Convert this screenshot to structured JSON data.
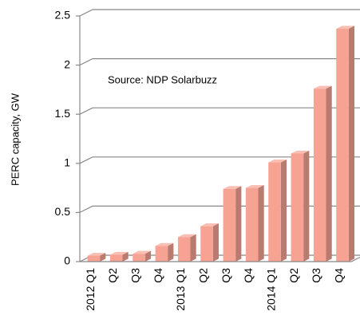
{
  "chart_data": {
    "type": "bar",
    "ylabel": "PERC capacity, GW",
    "annotation": "Source: NDP Solarbuzz",
    "categories": [
      "2012 Q1",
      "Q2",
      "Q3",
      "Q4",
      "2013 Q1",
      "Q2",
      "Q3",
      "Q4",
      "2014 Q1",
      "Q2",
      "Q3",
      "Q4"
    ],
    "values": [
      0.06,
      0.07,
      0.08,
      0.16,
      0.25,
      0.36,
      0.74,
      0.75,
      1.01,
      1.1,
      1.76,
      2.37
    ],
    "color": "#f7a394",
    "ylim": [
      0,
      2.5
    ],
    "yticks": [
      0,
      0.5,
      1,
      1.5,
      2,
      2.5
    ],
    "grid": true
  }
}
